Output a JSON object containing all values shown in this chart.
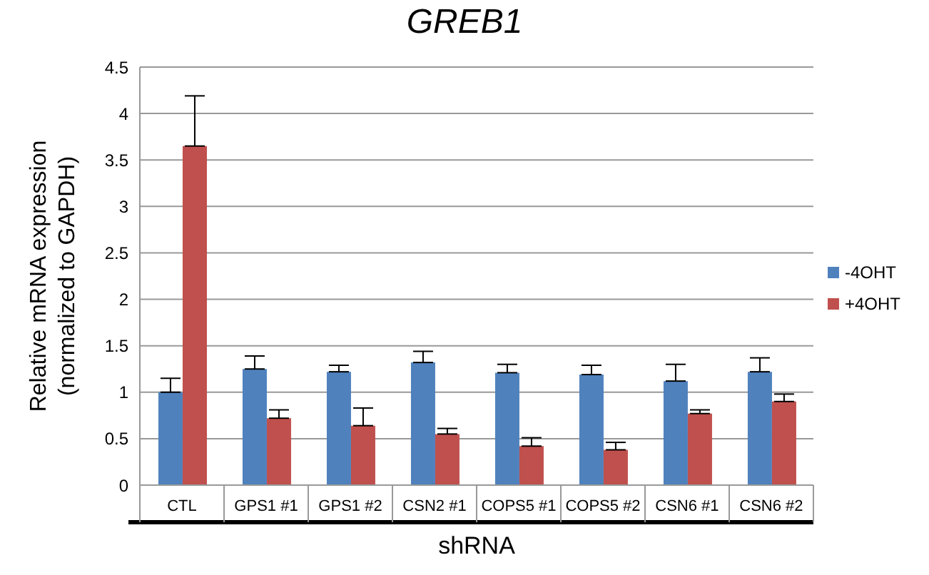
{
  "chart_data": {
    "type": "bar",
    "title": "GREB1",
    "xlabel": "shRNA",
    "ylabel": "Relative mRNA expression (normalized to GAPDH)",
    "categories": [
      "CTL",
      "GPS1 #1",
      "GPS1 #2",
      "CSN2 #1",
      "COPS5 #1",
      "COPS5 #2",
      "CSN6 #1",
      "CSN6 #2"
    ],
    "series": [
      {
        "name": "-4OHT",
        "color": "#4f81bd",
        "values": [
          1.0,
          1.25,
          1.22,
          1.32,
          1.21,
          1.19,
          1.12,
          1.22
        ],
        "errors": [
          [
            1.0,
            1.15
          ],
          [
            1.25,
            1.39
          ],
          [
            1.22,
            1.29
          ],
          [
            1.32,
            1.44
          ],
          [
            1.21,
            1.3
          ],
          [
            1.19,
            1.29
          ],
          [
            1.12,
            1.3
          ],
          [
            1.22,
            1.37
          ]
        ]
      },
      {
        "name": "+4OHT",
        "color": "#c0504d",
        "values": [
          3.65,
          0.72,
          0.64,
          0.55,
          0.42,
          0.38,
          0.77,
          0.9
        ],
        "errors": [
          [
            3.65,
            4.19
          ],
          [
            0.72,
            0.81
          ],
          [
            0.64,
            0.83
          ],
          [
            0.55,
            0.61
          ],
          [
            0.42,
            0.51
          ],
          [
            0.38,
            0.46
          ],
          [
            0.77,
            0.81
          ],
          [
            0.9,
            0.98
          ]
        ]
      }
    ],
    "ylim": [
      0,
      4.5
    ],
    "yticks": [
      0,
      0.5,
      1,
      1.5,
      2,
      2.5,
      3,
      3.5,
      4,
      4.5
    ],
    "grid": "y",
    "legend": "right"
  }
}
